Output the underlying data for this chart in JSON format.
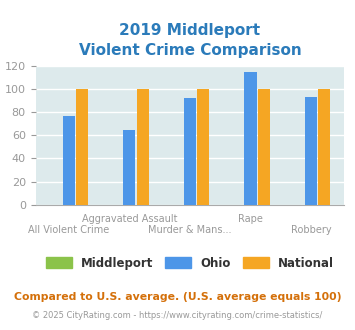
{
  "title_line1": "2019 Middleport",
  "title_line2": "Violent Crime Comparison",
  "categories": [
    "All Violent Crime",
    "Aggravated Assault",
    "Murder & Mans...",
    "Rape",
    "Robbery"
  ],
  "series": {
    "Middleport": [
      0,
      0,
      0,
      0,
      0
    ],
    "Ohio": [
      77,
      65,
      92,
      115,
      93
    ],
    "National": [
      100,
      100,
      100,
      100,
      100
    ]
  },
  "colors": {
    "Middleport": "#8bc34a",
    "Ohio": "#4d96e8",
    "National": "#f5a623"
  },
  "ylim": [
    0,
    120
  ],
  "yticks": [
    0,
    20,
    40,
    60,
    80,
    100,
    120
  ],
  "figure_bg": "#ffffff",
  "plot_bg_color": "#ddeaec",
  "grid_color": "#ffffff",
  "title_color": "#2b7bba",
  "subtitle_note": "Compared to U.S. average. (U.S. average equals 100)",
  "footer": "© 2025 CityRating.com - https://www.cityrating.com/crime-statistics/",
  "subtitle_color": "#d4700a",
  "footer_color": "#999999",
  "footer_link_color": "#4a90d9",
  "bar_width": 0.22,
  "legend_text_color": "#333333",
  "tick_label_color": "#999999"
}
